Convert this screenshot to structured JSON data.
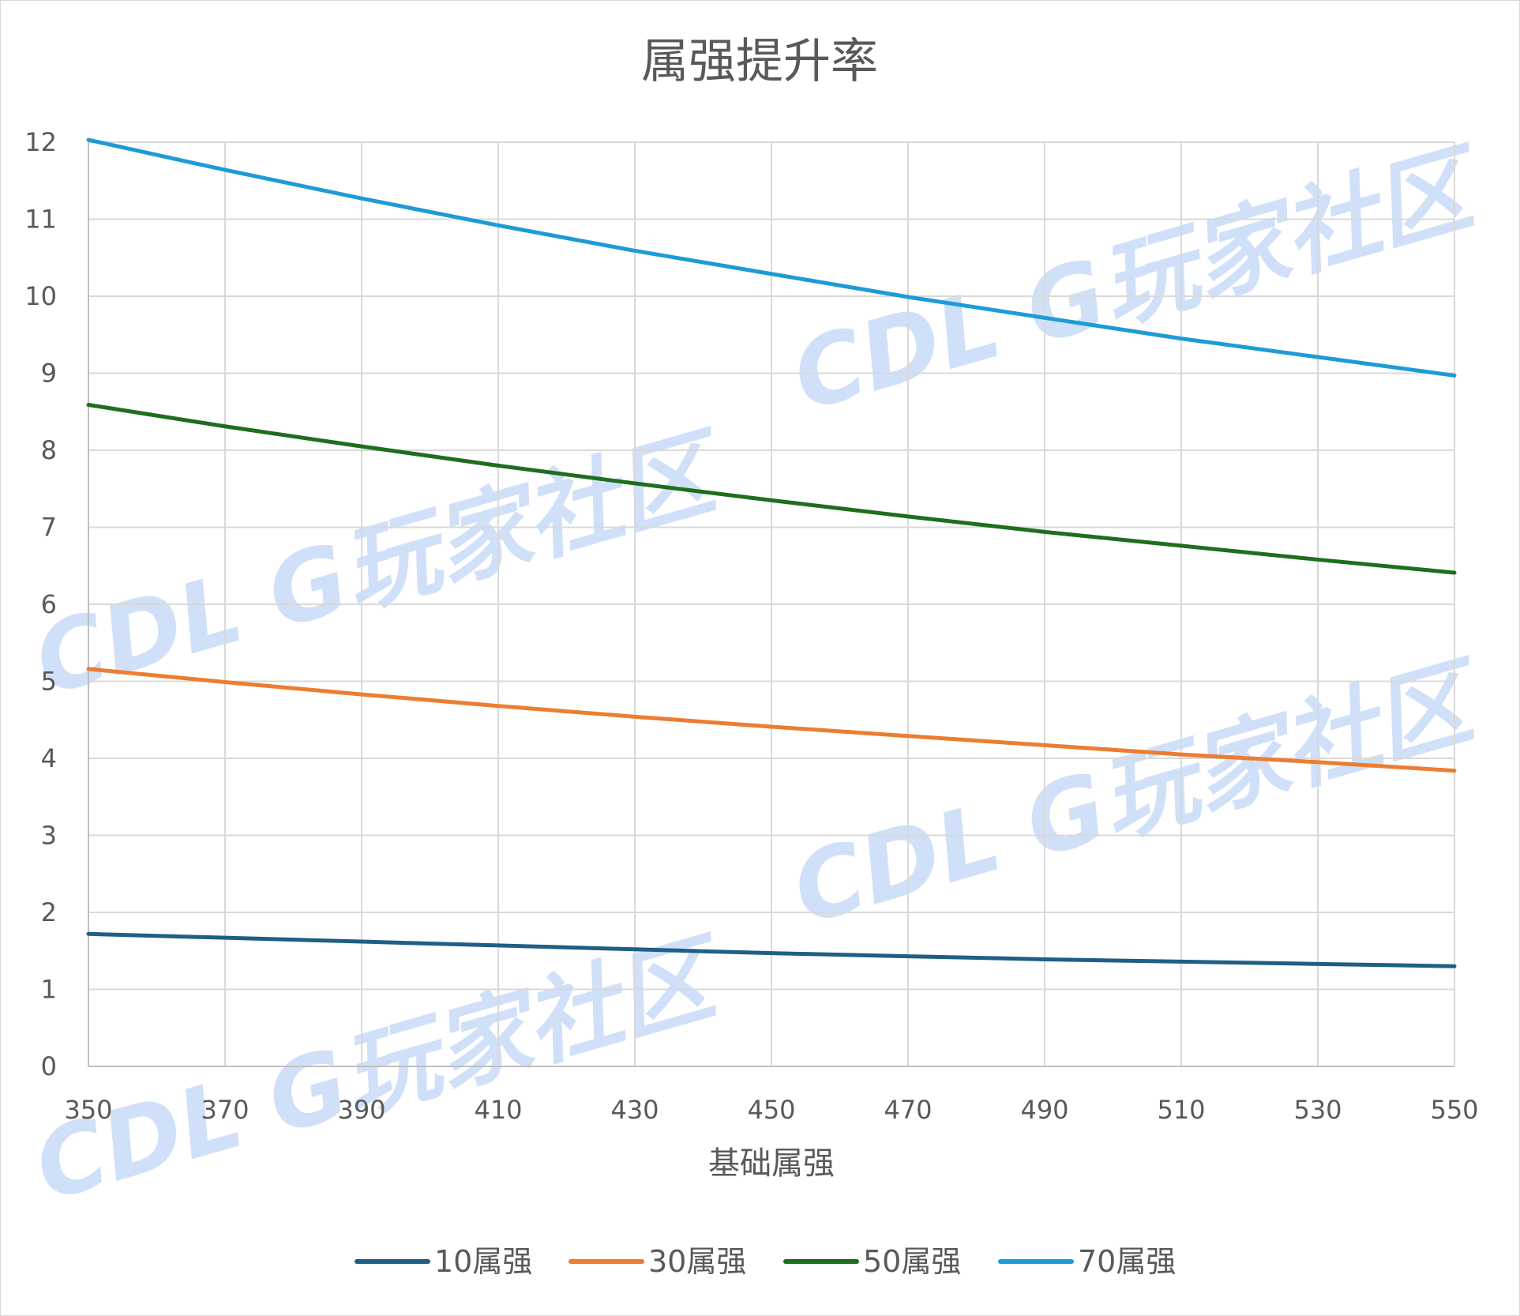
{
  "watermark": {
    "text": "CDL G玩家社区",
    "color": "#a9c7f2"
  },
  "chart_data": {
    "type": "line",
    "title": "属强提升率",
    "xlabel": "基础属强",
    "ylabel": "",
    "xlim": [
      350,
      550
    ],
    "ylim": [
      0,
      12
    ],
    "x_ticks": [
      "350",
      "370",
      "390",
      "410",
      "430",
      "450",
      "470",
      "490",
      "510",
      "530",
      "550"
    ],
    "y_ticks": [
      "0",
      "1",
      "2",
      "3",
      "4",
      "5",
      "6",
      "7",
      "8",
      "9",
      "10",
      "11",
      "12"
    ],
    "grid": true,
    "legend_position": "bottom",
    "x": [
      350,
      370,
      390,
      410,
      430,
      450,
      470,
      490,
      510,
      530,
      550
    ],
    "series": [
      {
        "name": "10属强",
        "color": "#1f5f86",
        "values": [
          1.72,
          1.67,
          1.62,
          1.57,
          1.52,
          1.47,
          1.43,
          1.39,
          1.36,
          1.33,
          1.3
        ]
      },
      {
        "name": "30属强",
        "color": "#ed7d31",
        "values": [
          5.16,
          4.99,
          4.83,
          4.68,
          4.54,
          4.41,
          4.29,
          4.17,
          4.05,
          3.95,
          3.84
        ]
      },
      {
        "name": "50属强",
        "color": "#1e6e1e",
        "values": [
          8.59,
          8.31,
          8.05,
          7.8,
          7.57,
          7.35,
          7.14,
          6.94,
          6.76,
          6.58,
          6.41
        ]
      },
      {
        "name": "70属强",
        "color": "#1e9bd7",
        "values": [
          12.03,
          11.64,
          11.27,
          10.92,
          10.59,
          10.29,
          9.99,
          9.72,
          9.45,
          9.21,
          8.97
        ]
      }
    ]
  }
}
